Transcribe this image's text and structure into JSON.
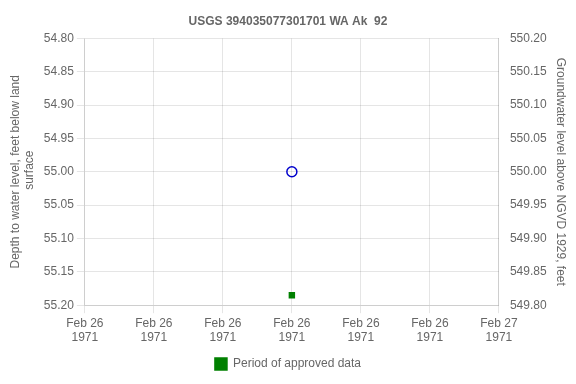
{
  "chart_data": {
    "type": "scatter",
    "title": "USGS 394035077301701 WA Ak  92",
    "y_label": "Depth to water level, feet below land\n surface",
    "y2_label": "Groundwater level above NGVD 1929, feet",
    "xlim": [
      0,
      24
    ],
    "xticks": [
      {
        "value": 0,
        "label": "Feb 26\n1971"
      },
      {
        "value": 4,
        "label": "Feb 26\n1971"
      },
      {
        "value": 8,
        "label": "Feb 26\n1971"
      },
      {
        "value": 12,
        "label": "Feb 26\n1971"
      },
      {
        "value": 16,
        "label": "Feb 26\n1971"
      },
      {
        "value": 20,
        "label": "Feb 26\n1971"
      },
      {
        "value": 24,
        "label": "Feb 27\n1971"
      }
    ],
    "ylim": [
      55.2,
      54.8
    ],
    "yticks": [
      {
        "value": 54.8,
        "label": "54.80"
      },
      {
        "value": 54.85,
        "label": "54.85"
      },
      {
        "value": 54.9,
        "label": "54.90"
      },
      {
        "value": 54.95,
        "label": "54.95"
      },
      {
        "value": 55.0,
        "label": "55.00"
      },
      {
        "value": 55.05,
        "label": "55.05"
      },
      {
        "value": 55.1,
        "label": "55.10"
      },
      {
        "value": 55.15,
        "label": "55.15"
      },
      {
        "value": 55.2,
        "label": "55.20"
      }
    ],
    "y2lim": [
      549.8,
      550.2
    ],
    "y2ticks": [
      {
        "value": 550.2,
        "label": "550.20"
      },
      {
        "value": 550.15,
        "label": "550.15"
      },
      {
        "value": 550.1,
        "label": "550.10"
      },
      {
        "value": 550.05,
        "label": "550.05"
      },
      {
        "value": 550.0,
        "label": "550.00"
      },
      {
        "value": 549.95,
        "label": "549.95"
      },
      {
        "value": 549.9,
        "label": "549.90"
      },
      {
        "value": 549.85,
        "label": "549.85"
      },
      {
        "value": 549.8,
        "label": "549.80"
      }
    ],
    "grid": true,
    "legend": "bottom",
    "series": [
      {
        "color": "#0000cc",
        "marker": "open_circle",
        "x": [
          12
        ],
        "values": [
          55.0
        ]
      },
      {
        "name": "Period of approved data",
        "color": "#008000",
        "marker": "square",
        "x": [
          12
        ],
        "values": [
          55.185
        ]
      }
    ]
  }
}
